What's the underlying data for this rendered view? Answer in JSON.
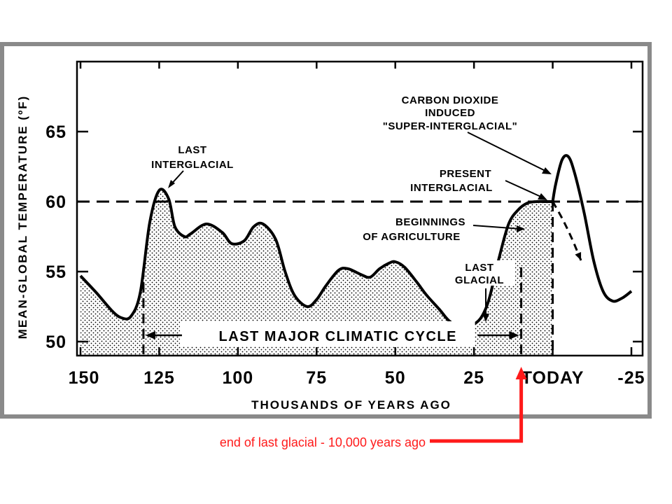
{
  "chart_data": {
    "type": "area",
    "xlabel": "THOUSANDS OF YEARS AGO",
    "ylabel": "MEAN-GLOBAL TEMPERATURE (ºF)",
    "xlim": [
      150,
      -25
    ],
    "ylim": [
      49,
      70
    ],
    "x_ticks": [
      "150",
      "125",
      "100",
      "75",
      "50",
      "25",
      "TODAY",
      "-25"
    ],
    "y_ticks": [
      "50",
      "55",
      "60",
      "65"
    ],
    "reference_line": 60,
    "series": [
      {
        "x": [
          150,
          145,
          140,
          137,
          134,
          131,
          128,
          125,
          122,
          120,
          117,
          115,
          110,
          105,
          102,
          98,
          95,
          92,
          88,
          85,
          82,
          78,
          75,
          72,
          68,
          65,
          61,
          58,
          55,
          52,
          50,
          47,
          43,
          40,
          36,
          33,
          30,
          27,
          24,
          22,
          20,
          17,
          14,
          11,
          8,
          5,
          2,
          0
        ],
        "y": [
          54.7,
          53.5,
          52.2,
          51.7,
          51.8,
          53.5,
          58.5,
          60.8,
          60.2,
          58.2,
          57.5,
          57.7,
          58.4,
          57.8,
          57.0,
          57.2,
          58.2,
          58.4,
          57.3,
          55.0,
          53.3,
          52.5,
          53.0,
          54.0,
          55.1,
          55.2,
          54.8,
          54.6,
          55.2,
          55.6,
          55.7,
          55.3,
          54.2,
          53.3,
          52.3,
          51.5,
          51.1,
          51.1,
          51.4,
          52.0,
          53.2,
          56.0,
          58.4,
          59.4,
          59.9,
          60.0,
          60.0,
          60.0
        ]
      },
      {
        "x": [
          0,
          -1,
          -3,
          -5,
          -7,
          -10,
          -13,
          -16,
          -19,
          -22,
          -25
        ],
        "y": [
          60.0,
          61.3,
          63.0,
          63.2,
          62.0,
          59.2,
          55.8,
          53.6,
          52.9,
          53.1,
          53.6
        ]
      },
      {
        "x": [
          0,
          -3,
          -6,
          -9
        ],
        "y": [
          60.0,
          58.8,
          57.4,
          55.8
        ]
      }
    ],
    "annotations": {
      "last_interglacial": [
        "LAST",
        "INTERGLACIAL"
      ],
      "carbon_dioxide": [
        "CARBON DIOXIDE",
        "INDUCED",
        "\"SUPER-INTERGLACIAL\""
      ],
      "present_interglacial": [
        "PRESENT",
        "INTERGLACIAL"
      ],
      "agriculture": [
        "BEGINNINGS",
        "OF AGRICULTURE"
      ],
      "last_glacial": [
        "LAST",
        "GLACIAL"
      ],
      "cycle": "LAST MAJOR CLIMATIC CYCLE"
    },
    "cycle_range": [
      130,
      10
    ]
  },
  "callout": {
    "text": "end of last glacial - 10,000 years ago",
    "color": "#ff1a1a",
    "x_value": 10
  },
  "colors": {
    "frame": "#8a8a8a",
    "ink": "#000000",
    "stipple": "#000000"
  }
}
